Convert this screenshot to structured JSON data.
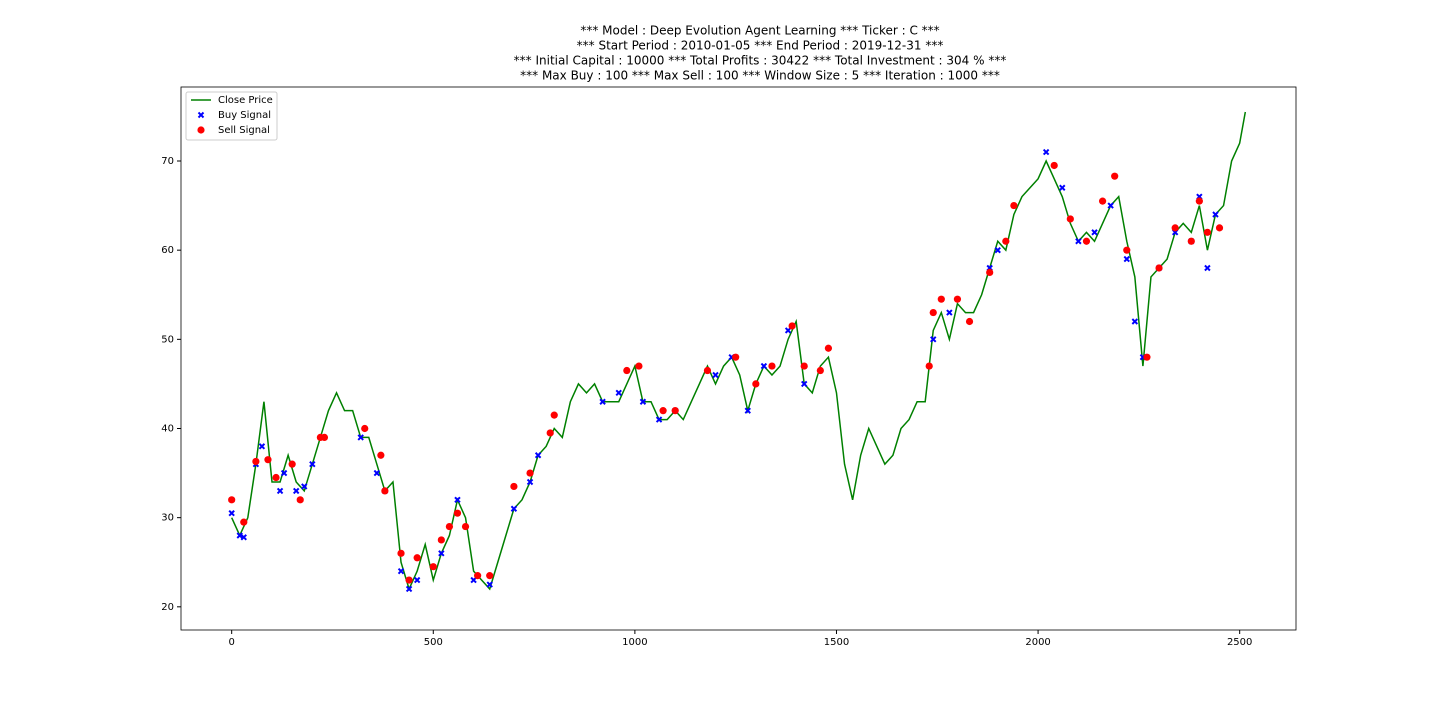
{
  "chart_data": {
    "type": "line",
    "title": [
      "*** Model : Deep Evolution Agent Learning *** Ticker : C ***",
      "*** Start Period : 2010-01-05 *** End Period : 2019-12-31 ***",
      "*** Initial Capital : 10000 *** Total Profits : 30422 *** Total Investment : 304 % ***",
      "*** Max Buy : 100 *** Max Sell : 100 *** Window Size : 5 *** Iteration : 1000 ***"
    ],
    "xlim": [
      -125.7,
      2639.7
    ],
    "ylim": [
      17.4,
      78.3
    ],
    "xticks": [
      0,
      500,
      1000,
      1500,
      2000,
      2500
    ],
    "yticks": [
      20,
      30,
      40,
      50,
      60,
      70
    ],
    "legend": "upper-left",
    "series": [
      {
        "name": "Close Price",
        "kind": "line",
        "color": "#008000",
        "x": [
          0,
          20,
          40,
          60,
          80,
          100,
          120,
          140,
          160,
          180,
          200,
          220,
          240,
          260,
          280,
          300,
          320,
          340,
          360,
          380,
          400,
          420,
          440,
          460,
          480,
          500,
          520,
          540,
          560,
          580,
          600,
          620,
          640,
          660,
          680,
          700,
          720,
          740,
          760,
          780,
          800,
          820,
          840,
          860,
          880,
          900,
          920,
          940,
          960,
          980,
          1000,
          1020,
          1040,
          1060,
          1080,
          1100,
          1120,
          1140,
          1160,
          1180,
          1200,
          1220,
          1240,
          1260,
          1280,
          1300,
          1320,
          1340,
          1360,
          1380,
          1400,
          1420,
          1440,
          1460,
          1480,
          1500,
          1520,
          1540,
          1560,
          1580,
          1600,
          1620,
          1640,
          1660,
          1680,
          1700,
          1720,
          1740,
          1760,
          1780,
          1800,
          1820,
          1840,
          1860,
          1880,
          1900,
          1920,
          1940,
          1960,
          1980,
          2000,
          2020,
          2040,
          2060,
          2080,
          2100,
          2120,
          2140,
          2160,
          2180,
          2200,
          2220,
          2240,
          2260,
          2280,
          2300,
          2320,
          2340,
          2360,
          2380,
          2400,
          2420,
          2440,
          2460,
          2480,
          2500,
          2514
        ],
        "values": [
          30,
          28,
          30,
          36,
          43,
          34,
          34,
          37,
          34,
          33,
          36,
          39,
          42,
          44,
          42,
          42,
          39,
          39,
          36,
          33,
          34,
          25,
          22,
          24,
          27,
          23,
          26,
          28,
          32,
          30,
          24,
          23,
          22,
          25,
          28,
          31,
          32,
          34,
          37,
          38,
          40,
          39,
          43,
          45,
          44,
          45,
          43,
          43,
          43,
          45,
          47,
          43,
          43,
          41,
          41,
          42,
          41,
          43,
          45,
          47,
          45,
          47,
          48,
          46,
          42,
          45,
          47,
          46,
          47,
          50,
          52,
          45,
          44,
          47,
          48,
          44,
          36,
          32,
          37,
          40,
          38,
          36,
          37,
          40,
          41,
          43,
          43,
          51,
          53,
          50,
          54,
          53,
          53,
          55,
          58,
          61,
          60,
          64,
          66,
          67,
          68,
          70,
          68,
          66,
          63,
          61,
          62,
          61,
          63,
          65,
          66,
          61,
          57,
          47,
          57,
          58,
          59,
          62,
          63,
          62,
          65,
          60,
          64,
          65,
          70,
          72,
          75.5
        ]
      },
      {
        "name": "Buy Signal",
        "kind": "buy",
        "color": "#0000ff",
        "x": [
          0,
          20,
          30,
          60,
          75,
          120,
          130,
          160,
          180,
          200,
          320,
          360,
          380,
          420,
          440,
          460,
          520,
          560,
          600,
          640,
          700,
          740,
          760,
          920,
          960,
          1020,
          1060,
          1100,
          1200,
          1240,
          1280,
          1320,
          1380,
          1420,
          1740,
          1780,
          1880,
          1900,
          2020,
          2060,
          2100,
          2140,
          2180,
          2220,
          2240,
          2260,
          2300,
          2340,
          2380,
          2400,
          2420,
          2440
        ],
        "values": [
          30.5,
          28,
          27.8,
          36,
          38,
          33,
          35,
          33,
          33.5,
          36,
          39,
          35,
          33,
          24,
          22,
          23,
          26,
          32,
          23,
          22.5,
          31,
          34,
          37,
          43,
          44,
          43,
          41,
          42,
          46,
          48,
          42,
          47,
          51,
          45,
          50,
          53,
          58,
          60,
          71,
          67,
          61,
          62,
          65,
          59,
          52,
          48,
          58,
          62,
          61,
          66,
          58,
          64
        ]
      },
      {
        "name": "Sell Signal",
        "kind": "sell",
        "color": "#ff0000",
        "x": [
          0,
          30,
          60,
          90,
          110,
          150,
          170,
          220,
          230,
          330,
          370,
          380,
          420,
          440,
          460,
          500,
          520,
          540,
          560,
          580,
          610,
          640,
          700,
          740,
          790,
          800,
          980,
          1010,
          1070,
          1100,
          1180,
          1250,
          1300,
          1340,
          1390,
          1420,
          1460,
          1480,
          1730,
          1740,
          1760,
          1800,
          1830,
          1880,
          1920,
          1940,
          2040,
          2080,
          2120,
          2160,
          2190,
          2220,
          2270,
          2300,
          2340,
          2380,
          2400,
          2420,
          2450
        ],
        "values": [
          32,
          29.5,
          36.3,
          36.5,
          34.5,
          36,
          32,
          39,
          39,
          40,
          37,
          33,
          26,
          23,
          25.5,
          24.5,
          27.5,
          29,
          30.5,
          29,
          23.5,
          23.5,
          33.5,
          35,
          39.5,
          41.5,
          46.5,
          47,
          42,
          42,
          46.5,
          48,
          45,
          47,
          51.5,
          47,
          46.5,
          49,
          47,
          53,
          54.5,
          54.5,
          52,
          57.5,
          61,
          65,
          69.5,
          63.5,
          61,
          65.5,
          68.3,
          60,
          48,
          58,
          62.5,
          61,
          65.5,
          62,
          62.5
        ]
      }
    ]
  }
}
